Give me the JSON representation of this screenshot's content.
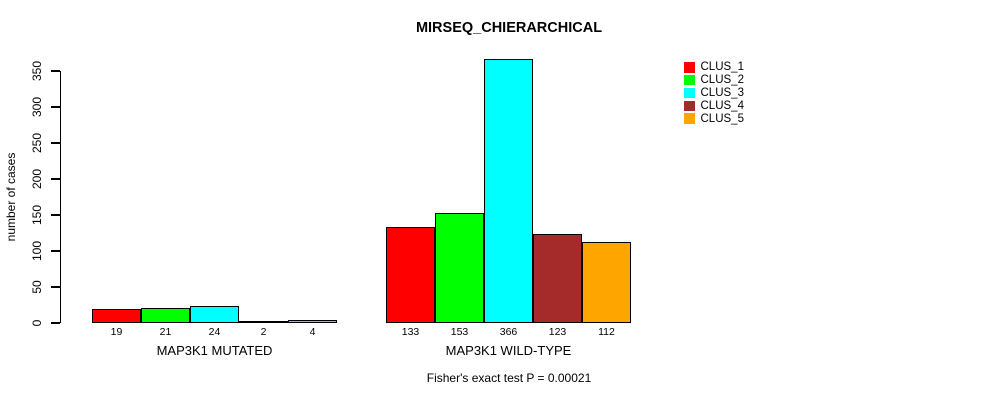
{
  "chart_data": {
    "type": "bar",
    "title": "MIRSEQ_CHIERARCHICAL",
    "ylabel": "number of cases",
    "xlabel": "",
    "ylim": [
      0,
      350
    ],
    "yticks": [
      0,
      50,
      100,
      150,
      200,
      250,
      300,
      350
    ],
    "categories": [
      "MAP3K1 MUTATED",
      "MAP3K1 WILD-TYPE"
    ],
    "series": [
      {
        "name": "CLUS_1",
        "color": "#FF0000",
        "values": [
          19,
          133
        ]
      },
      {
        "name": "CLUS_2",
        "color": "#00FF00",
        "values": [
          21,
          153
        ]
      },
      {
        "name": "CLUS_3",
        "color": "#00FFFF",
        "values": [
          24,
          366
        ]
      },
      {
        "name": "CLUS_4",
        "color": "#A52A2A",
        "values": [
          2,
          123
        ]
      },
      {
        "name": "CLUS_5",
        "color": "#FFA500",
        "values": [
          4,
          112
        ]
      }
    ],
    "bar_value_labels_shown": true,
    "legend_position": "top-right",
    "grid": false,
    "annotation": "Fisher's exact test P = 0.00021"
  },
  "colors": {
    "background": "#FFFFFF",
    "axis": "#000000",
    "text": "#000000",
    "bar_border": "#000000"
  }
}
